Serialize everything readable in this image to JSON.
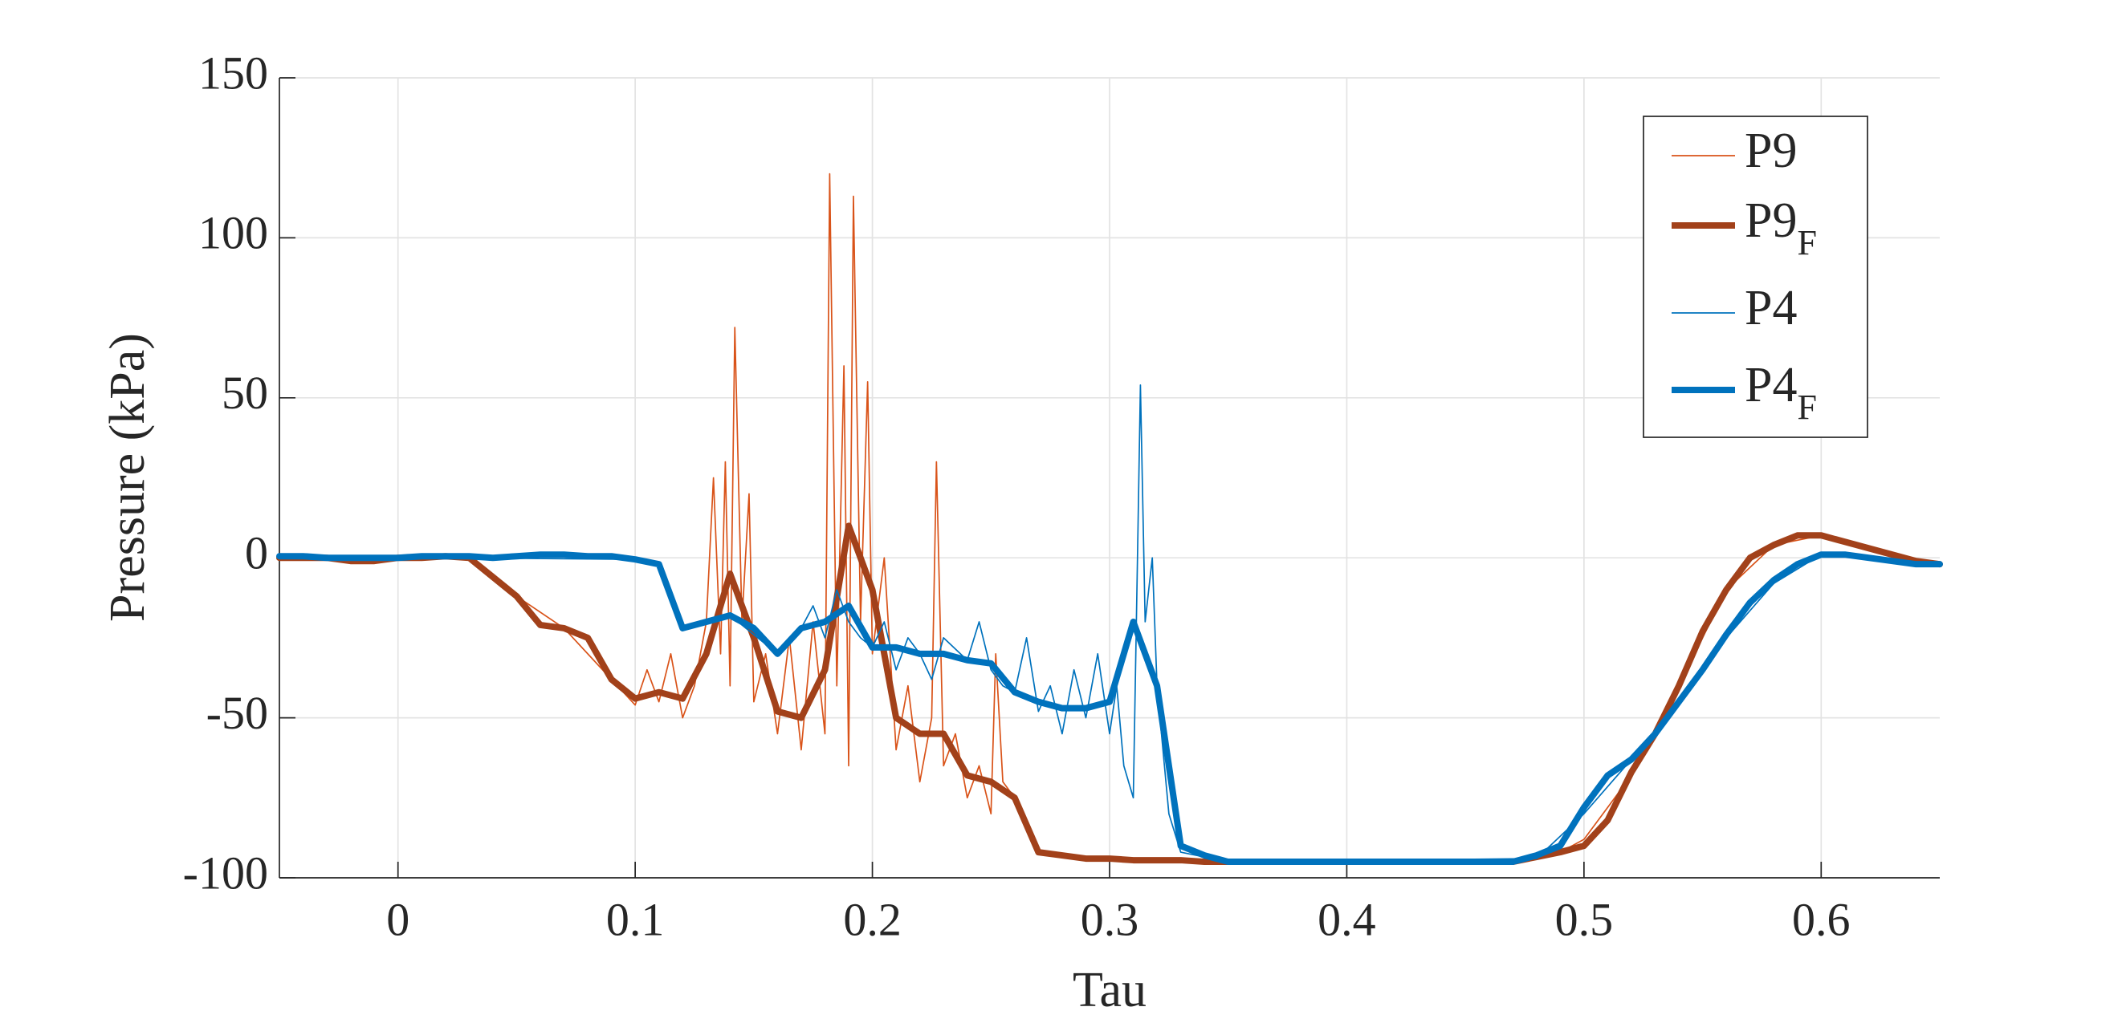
{
  "chart_data": {
    "type": "line",
    "xlabel": "Tau",
    "ylabel": "Pressure (kPa)",
    "xlim": [
      -0.05,
      0.65
    ],
    "ylim": [
      -100,
      150
    ],
    "xticks": [
      0,
      0.1,
      0.2,
      0.3,
      0.4,
      0.5,
      0.6
    ],
    "yticks": [
      -100,
      -50,
      0,
      50,
      100,
      150
    ],
    "grid": true,
    "legend": "top-right",
    "series": [
      {
        "name": "P9",
        "color": "#D95319",
        "width": 1.7,
        "x": [
          -0.05,
          0,
          0.03,
          0.05,
          0.07,
          0.09,
          0.1,
          0.105,
          0.11,
          0.115,
          0.12,
          0.125,
          0.13,
          0.133,
          0.136,
          0.138,
          0.14,
          0.142,
          0.145,
          0.148,
          0.15,
          0.155,
          0.16,
          0.165,
          0.17,
          0.175,
          0.18,
          0.182,
          0.185,
          0.188,
          0.19,
          0.192,
          0.195,
          0.198,
          0.2,
          0.205,
          0.21,
          0.215,
          0.22,
          0.225,
          0.227,
          0.23,
          0.235,
          0.24,
          0.245,
          0.25,
          0.252,
          0.255,
          0.26,
          0.27,
          0.3,
          0.35,
          0.47,
          0.49,
          0.5,
          0.52,
          0.54,
          0.56,
          0.58,
          0.6,
          0.62,
          0.65
        ],
        "values": [
          0,
          0,
          0,
          -12,
          -22,
          -38,
          -46,
          -35,
          -45,
          -30,
          -50,
          -40,
          -20,
          25,
          -30,
          30,
          -40,
          72,
          -20,
          20,
          -45,
          -30,
          -55,
          -25,
          -60,
          -20,
          -55,
          120,
          -40,
          60,
          -65,
          113,
          -20,
          55,
          -30,
          0,
          -60,
          -40,
          -70,
          -50,
          30,
          -65,
          -55,
          -75,
          -65,
          -80,
          -30,
          -70,
          -75,
          -92,
          -94,
          -95,
          -95,
          -92,
          -88,
          -68,
          -40,
          -10,
          4,
          7,
          3,
          -2
        ]
      },
      {
        "name": "P9",
        "subscript": "F",
        "color": "#A2411A",
        "width": 8,
        "x": [
          -0.05,
          -0.04,
          -0.03,
          -0.02,
          -0.01,
          0,
          0.01,
          0.02,
          0.03,
          0.04,
          0.05,
          0.06,
          0.07,
          0.08,
          0.09,
          0.1,
          0.11,
          0.12,
          0.13,
          0.14,
          0.15,
          0.16,
          0.17,
          0.18,
          0.19,
          0.2,
          0.21,
          0.22,
          0.23,
          0.24,
          0.25,
          0.26,
          0.27,
          0.28,
          0.29,
          0.3,
          0.31,
          0.32,
          0.33,
          0.34,
          0.35,
          0.36,
          0.37,
          0.38,
          0.39,
          0.4,
          0.41,
          0.42,
          0.43,
          0.44,
          0.45,
          0.46,
          0.47,
          0.48,
          0.49,
          0.5,
          0.51,
          0.52,
          0.53,
          0.54,
          0.55,
          0.56,
          0.57,
          0.58,
          0.59,
          0.6,
          0.61,
          0.62,
          0.63,
          0.64,
          0.65
        ],
        "values": [
          0,
          0,
          0,
          -1,
          -1,
          0,
          0,
          0.5,
          0,
          -6,
          -12,
          -21,
          -22,
          -25,
          -38,
          -44,
          -42,
          -44,
          -30,
          -5,
          -25,
          -48,
          -50,
          -35,
          10,
          -10,
          -50,
          -55,
          -55,
          -68,
          -70,
          -75,
          -92,
          -93,
          -94,
          -94,
          -94.5,
          -94.5,
          -94.5,
          -95,
          -95,
          -95,
          -95,
          -95,
          -95,
          -95,
          -95,
          -95,
          -95,
          -95,
          -95,
          -95,
          -95,
          -93.5,
          -92,
          -90,
          -82,
          -67,
          -55,
          -40,
          -23,
          -10,
          0,
          4,
          7,
          7,
          5,
          3,
          1,
          -1,
          -2
        ]
      },
      {
        "name": "P4",
        "color": "#0072BD",
        "width": 1.7,
        "x": [
          -0.05,
          0.1,
          0.11,
          0.12,
          0.14,
          0.16,
          0.17,
          0.175,
          0.18,
          0.185,
          0.19,
          0.195,
          0.2,
          0.205,
          0.21,
          0.215,
          0.22,
          0.225,
          0.23,
          0.24,
          0.245,
          0.25,
          0.255,
          0.26,
          0.265,
          0.27,
          0.275,
          0.28,
          0.285,
          0.29,
          0.295,
          0.3,
          0.303,
          0.306,
          0.31,
          0.312,
          0.313,
          0.315,
          0.318,
          0.32,
          0.325,
          0.33,
          0.35,
          0.48,
          0.5,
          0.52,
          0.54,
          0.56,
          0.58,
          0.6,
          0.62,
          0.65
        ],
        "values": [
          0.5,
          -0.5,
          -2,
          -22,
          -18,
          -30,
          -22,
          -15,
          -25,
          -10,
          -20,
          -25,
          -28,
          -20,
          -35,
          -25,
          -30,
          -38,
          -25,
          -32,
          -20,
          -35,
          -40,
          -42,
          -25,
          -48,
          -40,
          -55,
          -35,
          -50,
          -30,
          -55,
          -40,
          -65,
          -75,
          10,
          54,
          -20,
          0,
          -40,
          -80,
          -92,
          -95,
          -94,
          -80,
          -63,
          -45,
          -25,
          -8,
          1,
          0,
          -2
        ]
      },
      {
        "name": "P4",
        "subscript": "F",
        "color": "#0072BD",
        "width": 8,
        "x": [
          -0.05,
          -0.04,
          -0.03,
          -0.02,
          -0.01,
          0,
          0.01,
          0.02,
          0.03,
          0.04,
          0.05,
          0.06,
          0.07,
          0.08,
          0.09,
          0.1,
          0.11,
          0.12,
          0.13,
          0.14,
          0.15,
          0.16,
          0.17,
          0.18,
          0.19,
          0.2,
          0.21,
          0.22,
          0.23,
          0.24,
          0.25,
          0.26,
          0.27,
          0.28,
          0.29,
          0.3,
          0.31,
          0.32,
          0.33,
          0.34,
          0.35,
          0.36,
          0.37,
          0.38,
          0.39,
          0.4,
          0.41,
          0.42,
          0.43,
          0.44,
          0.45,
          0.46,
          0.47,
          0.48,
          0.49,
          0.5,
          0.51,
          0.52,
          0.53,
          0.54,
          0.55,
          0.56,
          0.57,
          0.58,
          0.59,
          0.6,
          0.61,
          0.62,
          0.63,
          0.64,
          0.65
        ],
        "values": [
          0.5,
          0.5,
          0,
          0,
          0,
          0,
          0.5,
          0.5,
          0.5,
          0,
          0.5,
          1,
          1,
          0.5,
          0.5,
          -0.5,
          -2,
          -22,
          -20,
          -18,
          -22,
          -30,
          -22,
          -20,
          -15,
          -28,
          -28,
          -30,
          -30,
          -32,
          -33,
          -42,
          -45,
          -47,
          -47,
          -45,
          -20,
          -40,
          -90,
          -93,
          -95,
          -95,
          -95,
          -95,
          -95,
          -95,
          -95,
          -95,
          -95,
          -95,
          -95,
          -95,
          -95,
          -93,
          -90,
          -78,
          -68,
          -63,
          -55,
          -45,
          -35,
          -24,
          -14,
          -7,
          -2,
          1,
          1,
          0,
          -1,
          -2,
          -2
        ]
      }
    ]
  }
}
